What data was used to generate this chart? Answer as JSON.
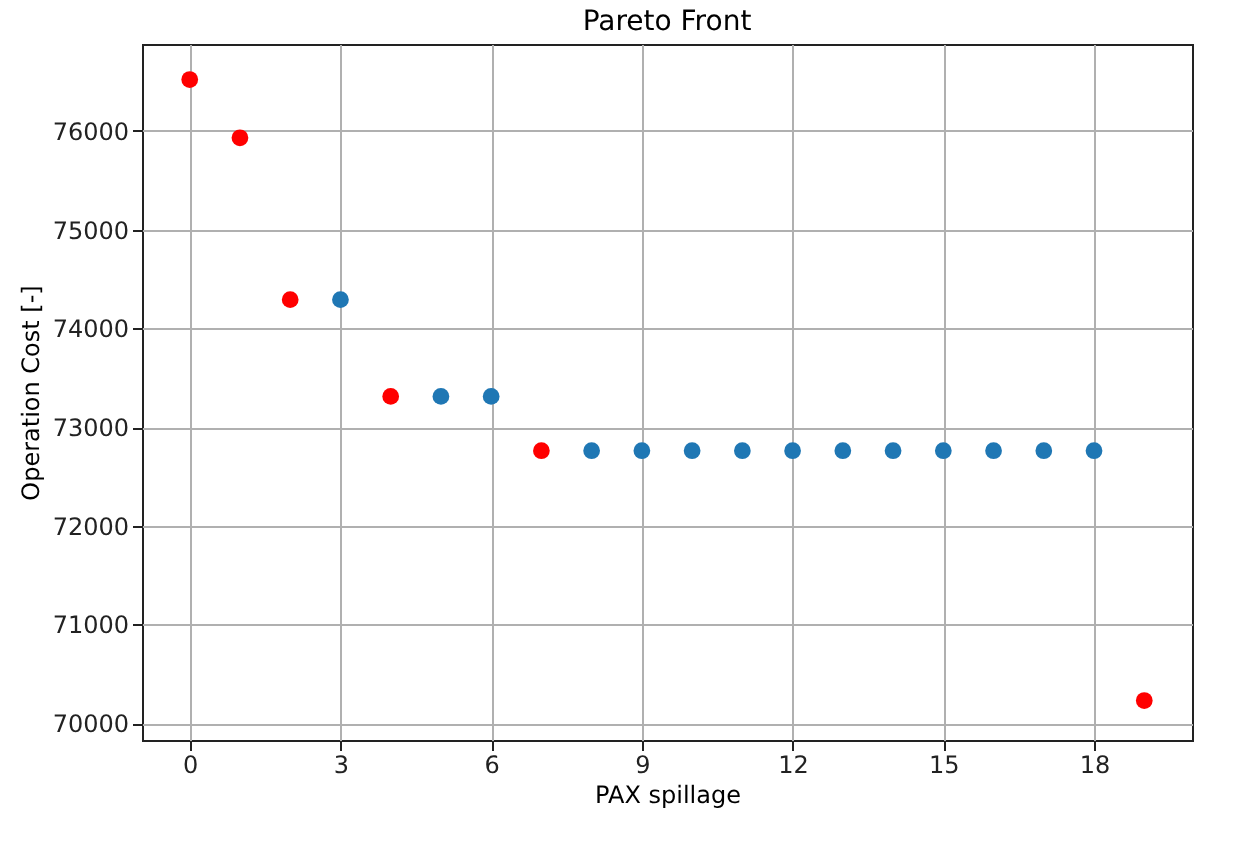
{
  "chart_data": {
    "type": "scatter",
    "title": "Pareto Front",
    "xlabel": "PAX spillage",
    "ylabel": "Operation Cost [-]",
    "xlim": [
      -0.95,
      19.95
    ],
    "xticks": [
      0,
      3,
      6,
      9,
      12,
      15,
      18
    ],
    "ylim": [
      69830,
      76880
    ],
    "yticks": [
      70000,
      71000,
      72000,
      73000,
      74000,
      75000,
      76000
    ],
    "grid": true,
    "marker": "circle",
    "series": [
      {
        "color": "#1f77b4",
        "x": [
          3,
          5,
          6,
          8,
          9,
          10,
          11,
          12,
          13,
          14,
          15,
          16,
          17,
          18
        ],
        "values": [
          74290,
          73310,
          73310,
          72760,
          72760,
          72760,
          72760,
          72760,
          72760,
          72760,
          72760,
          72760,
          72760,
          72760
        ]
      },
      {
        "color": "#ff0000",
        "x": [
          0,
          1,
          2,
          4,
          7,
          19
        ],
        "values": [
          76520,
          75930,
          74290,
          73310,
          72760,
          70230
        ]
      }
    ]
  }
}
